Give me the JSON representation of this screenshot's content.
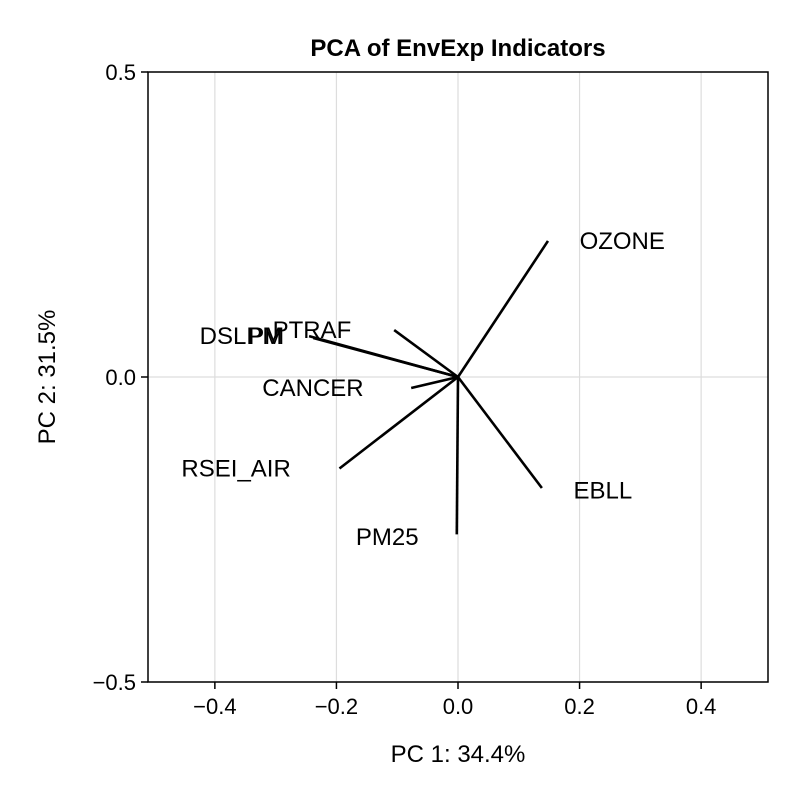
{
  "chart_data": {
    "type": "scatter",
    "subtype": "pca-loadings-biplot",
    "title": "PCA of EnvExp Indicators",
    "xlabel": "PC 1: 34.4%",
    "ylabel": "PC 2: 31.5%",
    "xlim": [
      -0.51,
      0.51
    ],
    "ylim": [
      -0.5,
      0.5
    ],
    "xticks": [
      -0.4,
      -0.2,
      0.0,
      0.2,
      0.4
    ],
    "xtick_labels": [
      "−0.4",
      "−0.2",
      "0.0",
      "0.2",
      "0.4"
    ],
    "yticks": [
      -0.5,
      0.0,
      0.5
    ],
    "ytick_labels": [
      "−0.5",
      "0.0",
      "0.5"
    ],
    "grid": true,
    "line_color": "#000000",
    "loadings": [
      {
        "name": "OZONE",
        "x": 0.148,
        "y": 0.223,
        "label_x": 0.2,
        "label_y": 0.223
      },
      {
        "name": "PTRAF",
        "x": -0.105,
        "y": 0.077,
        "label_x": -0.305,
        "label_y": 0.077
      },
      {
        "name": "DSLPM",
        "x": -0.245,
        "y": 0.067,
        "label_x": -0.425,
        "label_y": 0.067
      },
      {
        "name": "PM",
        "x": -0.238,
        "y": 0.064,
        "label_x": -0.345,
        "label_y": 0.067
      },
      {
        "name": "CANCER",
        "x": -0.077,
        "y": -0.018,
        "label_x": -0.322,
        "label_y": -0.018
      },
      {
        "name": "RSEI_AIR",
        "x": -0.195,
        "y": -0.15,
        "label_x": -0.455,
        "label_y": -0.15
      },
      {
        "name": "EBLL",
        "x": 0.138,
        "y": -0.182,
        "label_x": 0.19,
        "label_y": -0.186
      },
      {
        "name": "PM25",
        "x": -0.002,
        "y": -0.258,
        "label_x": -0.168,
        "label_y": -0.262
      }
    ]
  }
}
